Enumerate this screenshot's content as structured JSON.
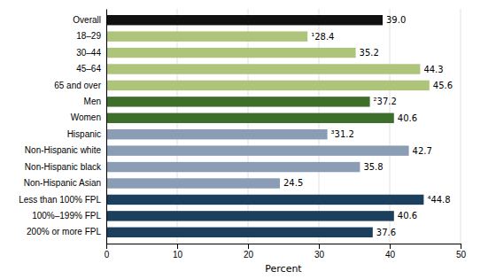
{
  "chart_data": {
    "type": "bar",
    "orientation": "horizontal",
    "categories": [
      "200% or more FPL",
      "100%–199% FPL",
      "Less than 100% FPL",
      "Non-Hispanic Asian",
      "Non-Hispanic black",
      "Non-Hispanic white",
      "Hispanic",
      "Women",
      "Men",
      "65 and over",
      "45–64",
      "30–44",
      "18–29",
      "Overall"
    ],
    "values": [
      37.6,
      40.6,
      44.8,
      24.5,
      35.8,
      42.7,
      31.2,
      40.6,
      37.2,
      45.6,
      44.3,
      35.2,
      28.4,
      39.0
    ],
    "value_labels": [
      "37.6",
      "40.6",
      "⁴44.8",
      "24.5",
      "35.8",
      "42.7",
      "³31.2",
      "40.6",
      "²37.2",
      "45.6",
      "44.3",
      "35.2",
      "¹28.4",
      "39.0"
    ],
    "data_labels": true,
    "colors": [
      "#1c3f5e",
      "#1c3f5e",
      "#1c3f5e",
      "#8a9db5",
      "#8a9db5",
      "#8a9db5",
      "#8a9db5",
      "#3d6e2a",
      "#3d6e2a",
      "#adc47a",
      "#adc47a",
      "#adc47a",
      "#adc47a",
      "#111111"
    ],
    "xlabel": "Percent",
    "xlim": [
      0,
      50
    ],
    "xticks": [
      0,
      10,
      20,
      30,
      40,
      50
    ],
    "grid": true
  }
}
